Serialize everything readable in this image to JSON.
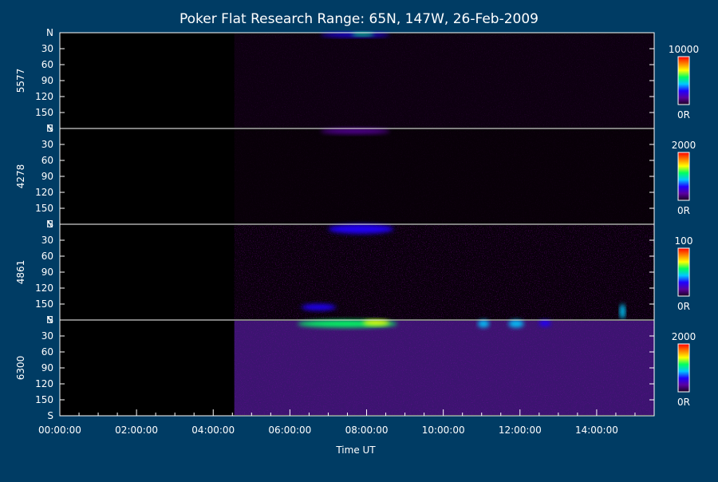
{
  "chart_data": {
    "type": "heatmap",
    "title": "Poker Flat Research Range: 65N, 147W, 26-Feb-2009",
    "xlabel": "Time UT",
    "x_tick_labels": [
      "00:00:00",
      "02:00:00",
      "04:00:00",
      "06:00:00",
      "08:00:00",
      "10:00:00",
      "12:00:00",
      "14:00:00"
    ],
    "x_tick_hours": [
      0,
      2,
      4,
      6,
      8,
      10,
      12,
      14
    ],
    "x_range_hours": [
      0,
      15.5
    ],
    "data_start_hour": 4.55,
    "y_tick_labels": [
      "N",
      "30",
      "60",
      "90",
      "120",
      "150",
      "S"
    ],
    "y_tick_values": [
      0,
      30,
      60,
      90,
      120,
      150,
      180
    ],
    "y_range": [
      0,
      180
    ],
    "background_color": "#003c64",
    "panels": [
      {
        "name": "5577",
        "colorbar_max": "10000",
        "colorbar_min": "0R",
        "features": [
          {
            "t_start": 6.8,
            "t_end": 8.6,
            "angle_start": 0,
            "angle_end": 8,
            "level": 0.35
          },
          {
            "t_start": 7.6,
            "t_end": 8.2,
            "angle_start": 0,
            "angle_end": 5,
            "level": 0.6
          }
        ]
      },
      {
        "name": "4278",
        "colorbar_max": "2000",
        "colorbar_min": "0R",
        "features": [
          {
            "t_start": 6.8,
            "t_end": 8.6,
            "angle_start": 0,
            "angle_end": 10,
            "level": 0.12
          }
        ]
      },
      {
        "name": "4861",
        "colorbar_max": "100",
        "colorbar_min": "0R",
        "features": [
          {
            "t_start": 7.0,
            "t_end": 8.7,
            "angle_start": 0,
            "angle_end": 18,
            "level": 0.3
          },
          {
            "t_start": 6.3,
            "t_end": 7.2,
            "angle_start": 150,
            "angle_end": 162,
            "level": 0.35
          },
          {
            "t_start": 14.6,
            "t_end": 14.75,
            "angle_start": 150,
            "angle_end": 178,
            "level": 0.4
          }
        ]
      },
      {
        "name": "6300",
        "colorbar_max": "2000",
        "colorbar_min": "0R",
        "features": [
          {
            "t_start": 6.2,
            "t_end": 8.8,
            "angle_start": 0,
            "angle_end": 14,
            "level": 0.55
          },
          {
            "t_start": 7.9,
            "t_end": 8.6,
            "angle_start": 0,
            "angle_end": 10,
            "level": 0.75
          },
          {
            "t_start": 10.9,
            "t_end": 11.2,
            "angle_start": 0,
            "angle_end": 14,
            "level": 0.45
          },
          {
            "t_start": 11.7,
            "t_end": 12.1,
            "angle_start": 0,
            "angle_end": 14,
            "level": 0.45
          },
          {
            "t_start": 12.5,
            "t_end": 12.8,
            "angle_start": 0,
            "angle_end": 12,
            "level": 0.3
          }
        ]
      }
    ],
    "colorscale": [
      "#1a0020",
      "#5a00a0",
      "#2000ff",
      "#00c8ff",
      "#00ff60",
      "#ffff00",
      "#ff8000",
      "#ff0000"
    ]
  }
}
